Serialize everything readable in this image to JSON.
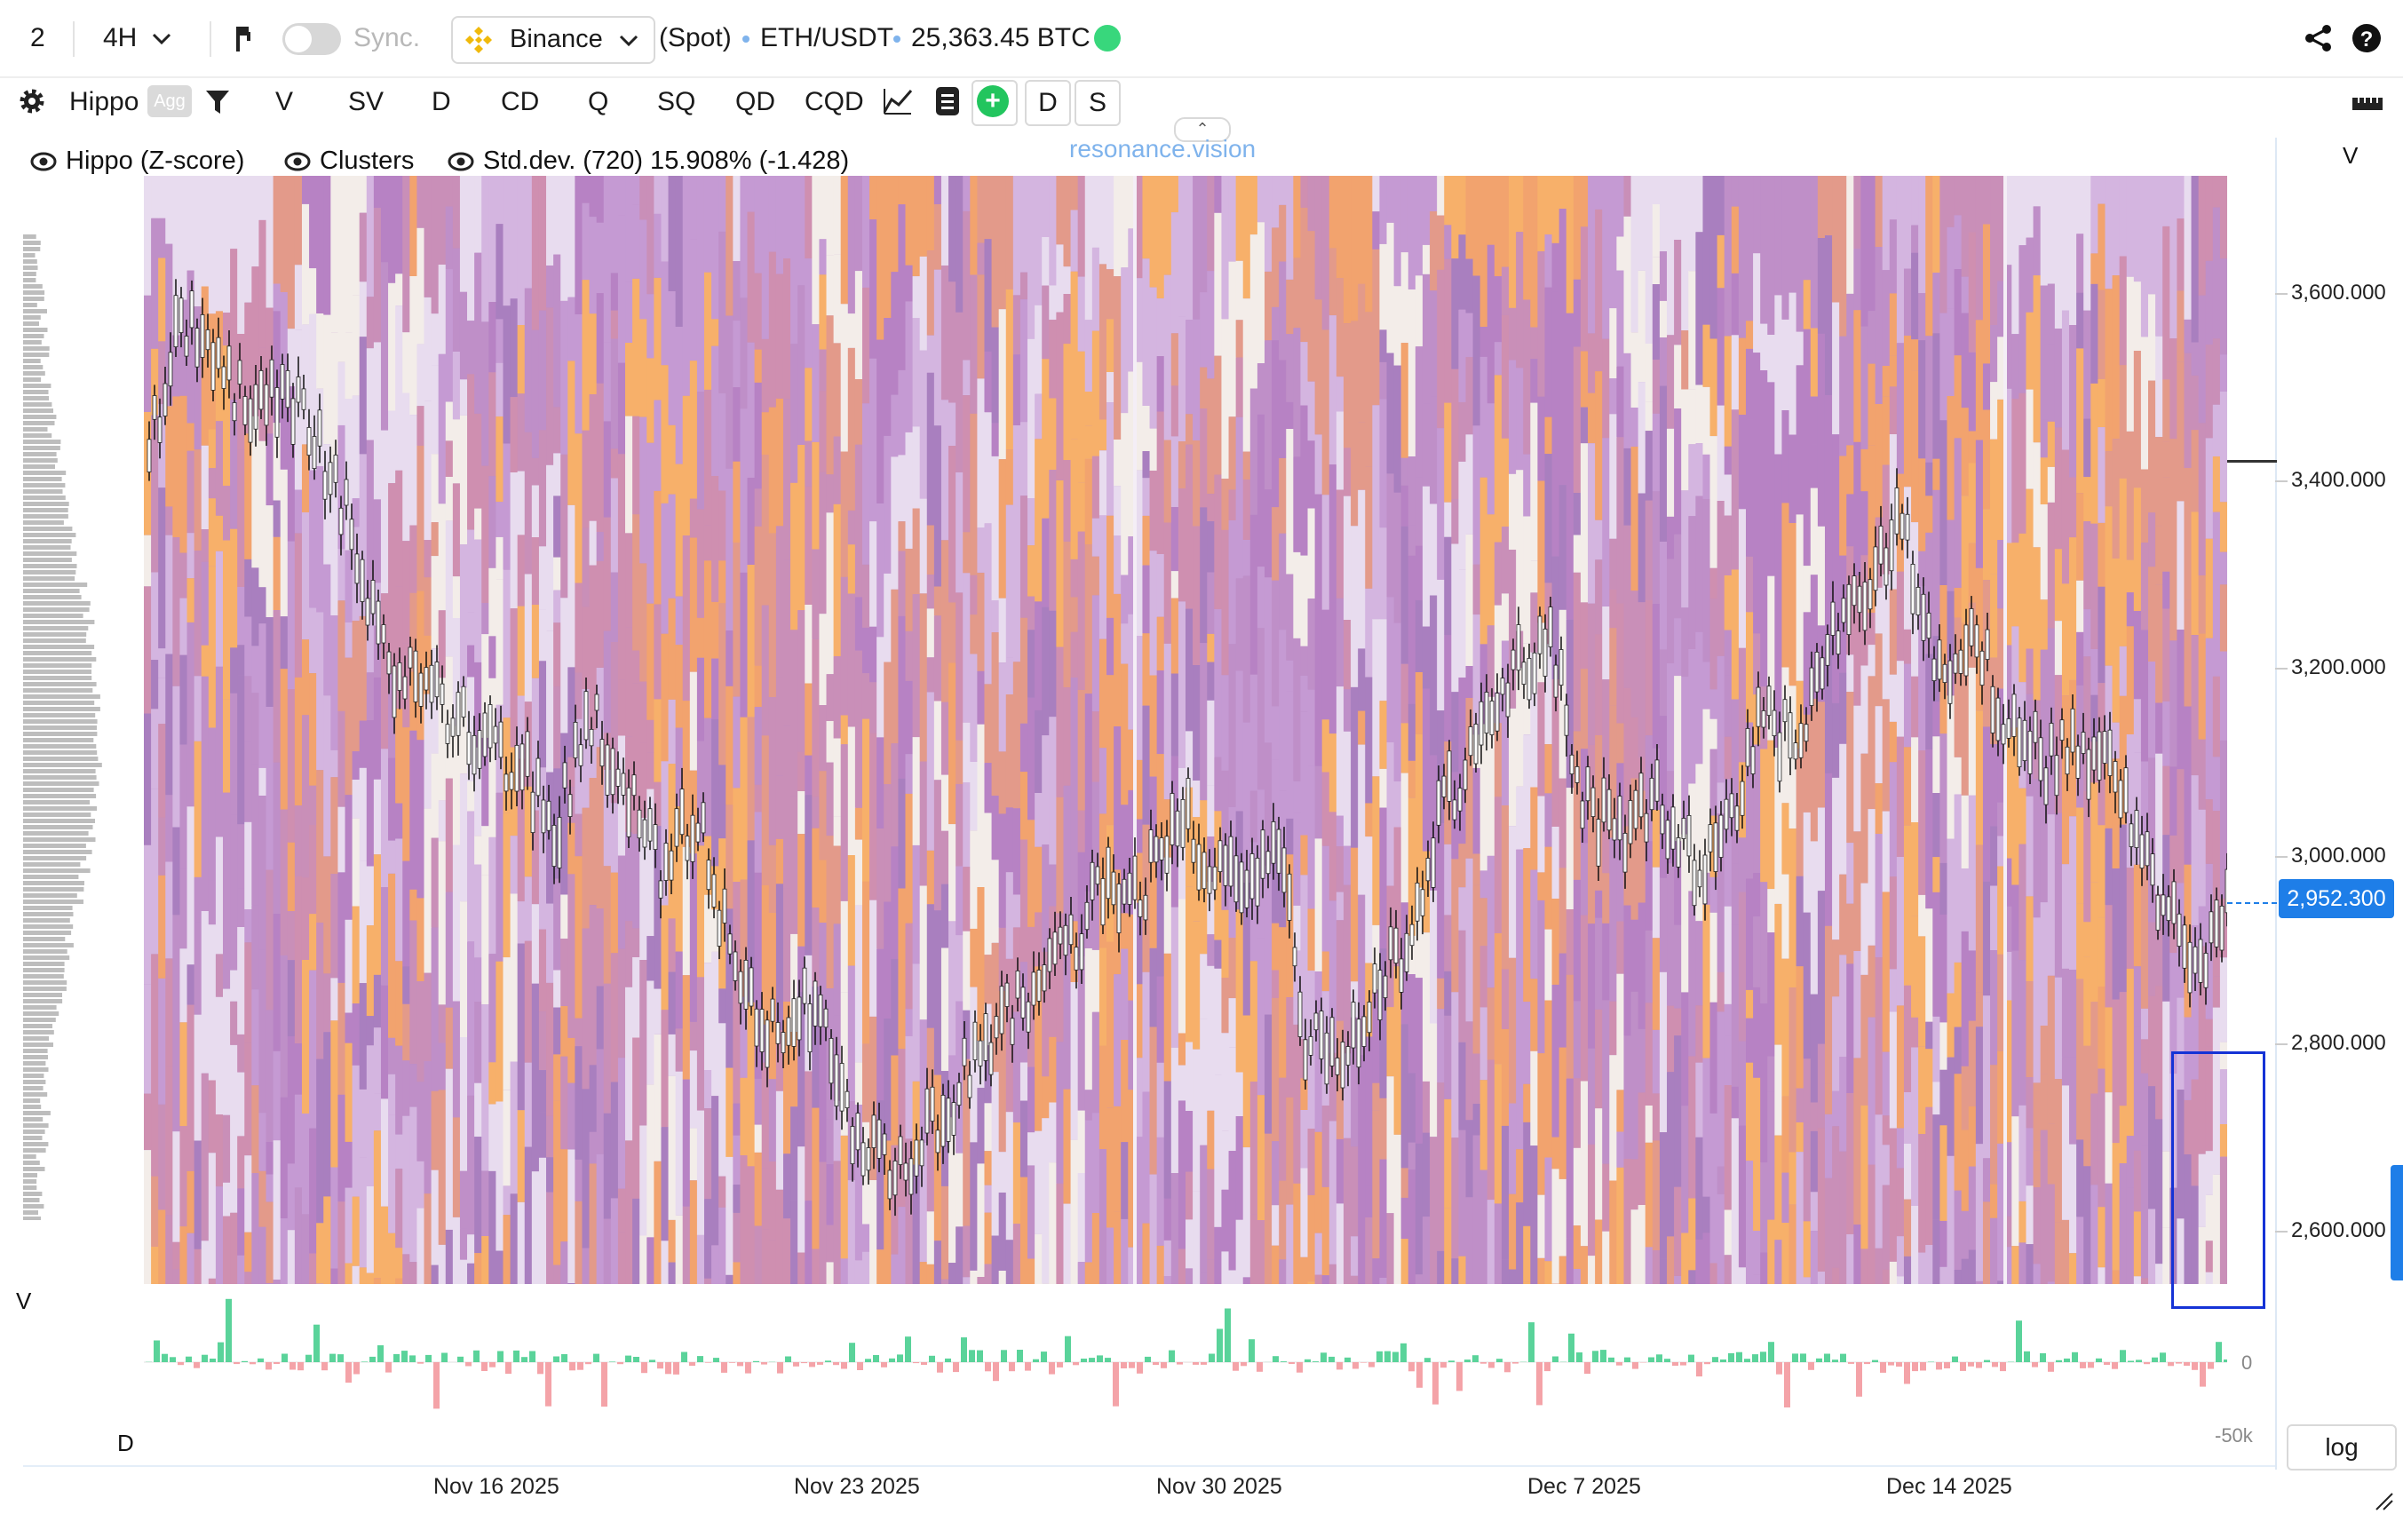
{
  "topbar": {
    "layout_index": "2",
    "timeframe": "4H",
    "sync_label": "Sync.",
    "exchange": "Binance",
    "market_type": "(Spot)",
    "symbol": "ETH/USDT",
    "volume_readout": "25,363.45 BTC"
  },
  "toolbar": {
    "indicator": "Hippo",
    "agg_badge": "Agg",
    "buttons": [
      "V",
      "SV",
      "D",
      "CD",
      "Q",
      "SQ",
      "QD",
      "CQD"
    ],
    "box_buttons": [
      "D",
      "S"
    ]
  },
  "legend": {
    "item1": "Hippo (Z-score)",
    "item2": "Clusters",
    "item3": "Std.dev. (720) 15.908% (-1.428)"
  },
  "watermark": "resonance.vision",
  "price_axis": {
    "labels": [
      "3,600.000",
      "3,400.000",
      "3,200.000",
      "3,000.000",
      "2,800.000",
      "2,600.000"
    ],
    "values": [
      3600,
      3400,
      3200,
      3000,
      2800,
      2600
    ],
    "current_price": "2,952.300",
    "corner_label": "V"
  },
  "volume_axis": {
    "zero_label": "0",
    "neg_label": "-50k"
  },
  "pane_labels": {
    "volume": "V",
    "delta": "D"
  },
  "x_axis": [
    "Nov 16 2025",
    "Nov 23 2025",
    "Nov 30 2025",
    "Dec 7 2025",
    "Dec 14 2025"
  ],
  "log_button": "log",
  "colors": {
    "accent": "#1e7ee8",
    "positive": "#5ad39a",
    "negative": "#f4a3a8",
    "heat_base": "#b98cc9",
    "heat_hot": "#f5a25d",
    "heat_cold": "#e6dcef"
  }
}
